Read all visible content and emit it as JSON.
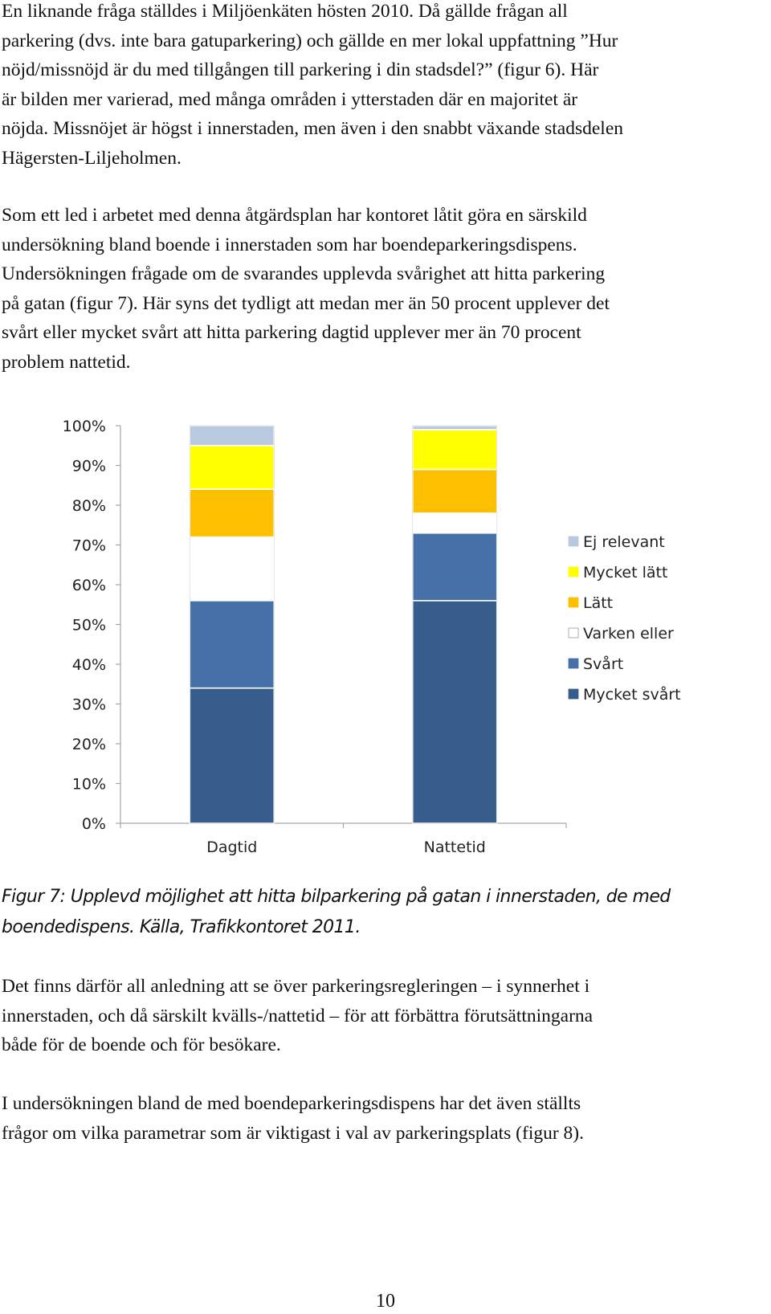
{
  "document": {
    "paragraph_1": [
      "En liknande fråga ställdes i Miljöenkäten hösten 2010. Då gällde frågan all",
      "parkering (dvs. inte bara gatuparkering) och gällde en mer lokal uppfattning ”Hur",
      "nöjd/missnöjd är du med tillgången till parkering i din stadsdel?” (figur 6). Här",
      "är bilden mer varierad, med många områden i ytterstaden där en majoritet är",
      "nöjda. Missnöjet är högst i innerstaden, men även i den snabbt växande stadsdelen",
      "Hägersten-Liljeholmen."
    ],
    "paragraph_2": [
      "Som ett led i arbetet med denna åtgärdsplan har kontoret låtit göra en särskild",
      "undersökning bland boende i innerstaden som har boendeparkeringsdispens.",
      "Undersökningen frågade om de svarandes upplevda svårighet att hitta parkering",
      "på gatan (figur 7). Här syns det tydligt att medan mer än 50 procent upplever det",
      "svårt eller mycket svårt att hitta parkering dagtid upplever mer än 70 procent",
      "problem nattetid."
    ],
    "caption": [
      "Figur 7: Upplevd möjlighet att hitta bilparkering på gatan i innerstaden, de med",
      "boendedispens. Källa, Trafikkontoret 2011."
    ],
    "paragraph_3": [
      "Det finns därför all anledning att se över parkeringsregleringen – i synnerhet i",
      "innerstaden, och då särskilt kvälls-/nattetid – för att förbättra förutsättningarna",
      "både för de boende och för besökare."
    ],
    "paragraph_4": [
      "I undersökningen bland de med boendeparkeringsdispens har det även ställts",
      "frågor om vilka parametrar som är viktigast i val av parkeringsplats (figur 8)."
    ],
    "page_number": "10"
  },
  "chart_data": {
    "type": "bar",
    "stacked": true,
    "categories": [
      "Dagtid",
      "Nattetid"
    ],
    "y_tick_labels": [
      "0%",
      "10%",
      "20%",
      "30%",
      "40%",
      "50%",
      "60%",
      "70%",
      "80%",
      "90%",
      "100%"
    ],
    "ylim": [
      0,
      100
    ],
    "grid": false,
    "legend_position": "right",
    "series": [
      {
        "name": "Mycket svårt",
        "color": "#375d8c",
        "values": [
          34,
          56
        ]
      },
      {
        "name": "Svårt",
        "color": "#4571a8",
        "values": [
          22,
          17
        ]
      },
      {
        "name": "Varken eller",
        "color": "#ffffff",
        "values": [
          16,
          5
        ]
      },
      {
        "name": "Lätt",
        "color": "#fdc000",
        "values": [
          12,
          11
        ]
      },
      {
        "name": "Mycket lätt",
        "color": "#ffff00",
        "values": [
          11,
          10
        ]
      },
      {
        "name": "Ej relevant",
        "color": "#b9c9e0",
        "values": [
          5,
          1
        ]
      }
    ],
    "legend_order": [
      "Ej relevant",
      "Mycket lätt",
      "Lätt",
      "Varken eller",
      "Svårt",
      "Mycket svårt"
    ]
  }
}
